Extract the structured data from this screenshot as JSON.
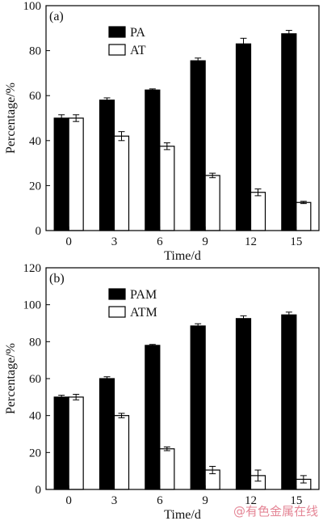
{
  "chart_data": [
    {
      "type": "bar",
      "panel_label": "(a)",
      "categories": [
        "0",
        "3",
        "6",
        "9",
        "12",
        "15"
      ],
      "series": [
        {
          "name": "PA",
          "color": "#000000",
          "values": [
            50,
            58,
            62.5,
            75.5,
            83,
            87.5
          ],
          "errors": [
            1.5,
            1.0,
            0.5,
            1.2,
            2.5,
            1.5
          ]
        },
        {
          "name": "AT",
          "color": "#ffffff",
          "values": [
            50,
            42,
            37.5,
            24.5,
            17,
            12.5
          ],
          "errors": [
            1.5,
            2.0,
            1.5,
            1.0,
            1.5,
            0.5
          ]
        }
      ],
      "xlabel": "Time/d",
      "ylabel": "Percentage/%",
      "ylim": [
        0,
        100
      ],
      "yticks": [
        0,
        20,
        40,
        60,
        80,
        100
      ],
      "legend": "top-left"
    },
    {
      "type": "bar",
      "panel_label": "(b)",
      "categories": [
        "0",
        "3",
        "6",
        "9",
        "12",
        "15"
      ],
      "series": [
        {
          "name": "PAM",
          "color": "#000000",
          "values": [
            50,
            60,
            78,
            88.5,
            92.5,
            94.5
          ],
          "errors": [
            1.0,
            1.0,
            0.5,
            1.2,
            1.5,
            1.5
          ]
        },
        {
          "name": "ATM",
          "color": "#ffffff",
          "values": [
            50,
            40,
            22,
            10.5,
            7.5,
            5.5
          ],
          "errors": [
            1.5,
            1.2,
            1.0,
            2.0,
            3.0,
            2.0
          ]
        }
      ],
      "xlabel": "Time/d",
      "ylabel": "Percentage/%",
      "ylim": [
        0,
        120
      ],
      "yticks": [
        0,
        20,
        40,
        60,
        80,
        100,
        120
      ],
      "legend": "top-left"
    }
  ],
  "watermark": "@有色金属在线"
}
